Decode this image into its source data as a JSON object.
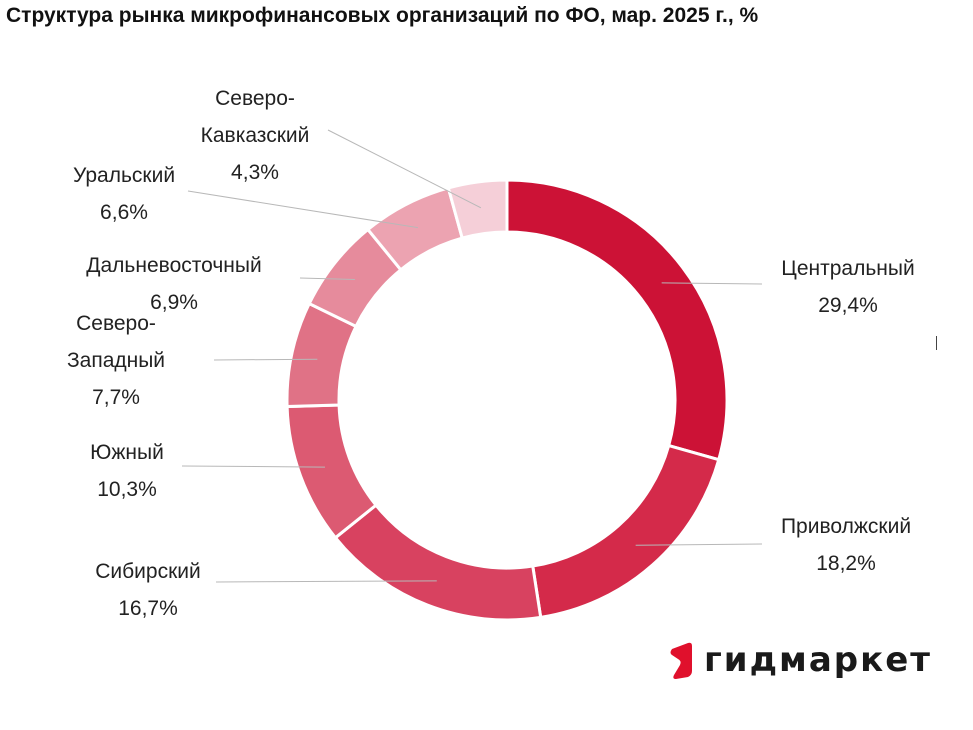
{
  "chart_data": {
    "type": "pie",
    "title": "Структура рынка микрофинансовых организаций по ФО, мар. 2025 г., %",
    "slices": [
      {
        "label_lines": [
          "Центральный"
        ],
        "value_label": "29,4%",
        "value": 29.4,
        "color": "#cc1236"
      },
      {
        "label_lines": [
          "Приволжский"
        ],
        "value_label": "18,2%",
        "value": 18.2,
        "color": "#d42a4a"
      },
      {
        "label_lines": [
          "Сибирский"
        ],
        "value_label": "16,7%",
        "value": 16.7,
        "color": "#d84260"
      },
      {
        "label_lines": [
          "Южный"
        ],
        "value_label": "10,3%",
        "value": 10.3,
        "color": "#dc5a72"
      },
      {
        "label_lines": [
          "Северо-",
          "Западный"
        ],
        "value_label": "7,7%",
        "value": 7.7,
        "color": "#e07286"
      },
      {
        "label_lines": [
          "Дальневосточный"
        ],
        "value_label": "6,9%",
        "value": 6.9,
        "color": "#e68b9c"
      },
      {
        "label_lines": [
          "Уральский"
        ],
        "value_label": "6,6%",
        "value": 6.6,
        "color": "#eca3b1"
      },
      {
        "label_lines": [
          "Северо-",
          "Кавказский"
        ],
        "value_label": "4,3%",
        "value": 4.3,
        "color": "#f5cfd8"
      }
    ]
  },
  "brand": {
    "name": "гидмаркет",
    "logo_color": "#e0102c"
  }
}
